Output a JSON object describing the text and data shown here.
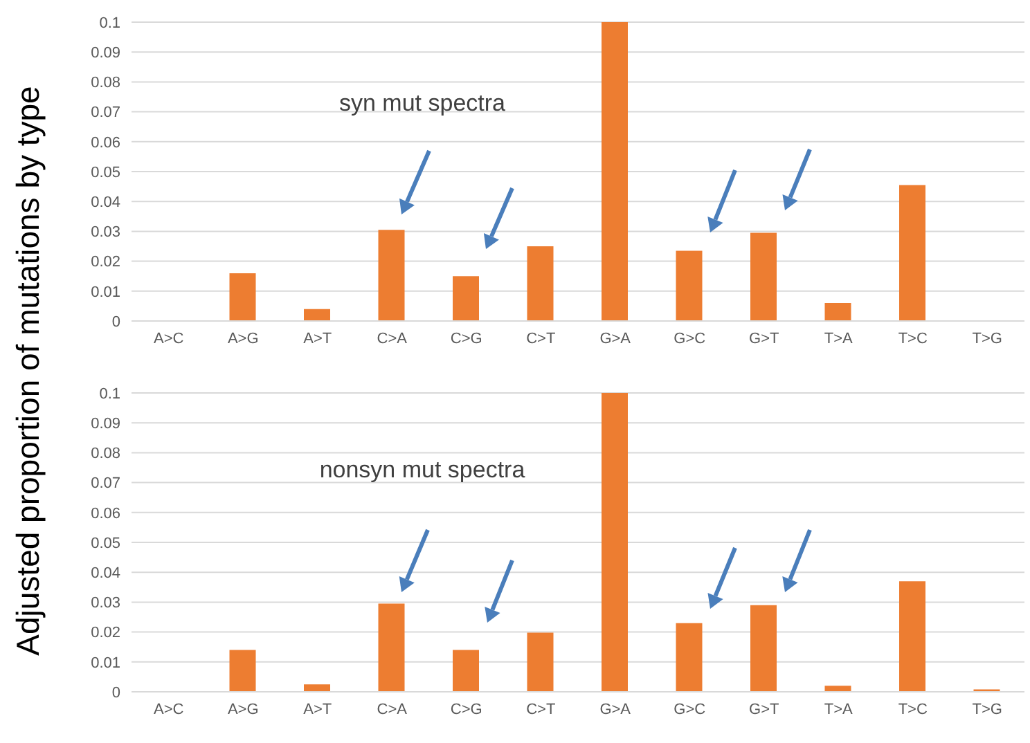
{
  "chart_data": [
    {
      "type": "bar",
      "ylabel": "Adjusted proportion of mutations by type",
      "annotations": [
        "syn mut  spectra"
      ],
      "categories": [
        "A>C",
        "A>G",
        "A>T",
        "C>A",
        "C>G",
        "C>T",
        "G>A",
        "G>C",
        "G>T",
        "T>A",
        "T>C",
        "T>G"
      ],
      "values": [
        0,
        0.016,
        0.004,
        0.0305,
        0.015,
        0.025,
        0.1,
        0.0235,
        0.0295,
        0.006,
        0.0455,
        0
      ],
      "color": "#ed7d31",
      "ylim": [
        0,
        0.1
      ],
      "yticks": [
        0,
        0.01,
        0.02,
        0.03,
        0.04,
        0.05,
        0.06,
        0.07,
        0.08,
        0.09,
        0.1
      ],
      "grid": "y",
      "legend": false
    },
    {
      "type": "bar",
      "annotations": [
        "nonsyn mut  spectra"
      ],
      "categories": [
        "A>C",
        "A>G",
        "A>T",
        "C>A",
        "C>G",
        "C>T",
        "G>A",
        "G>C",
        "G>T",
        "T>A",
        "T>C",
        "T>G"
      ],
      "values": [
        0,
        0.014,
        0.0025,
        0.0295,
        0.014,
        0.0198,
        0.1,
        0.023,
        0.029,
        0.002,
        0.037,
        0.0008
      ],
      "color": "#ed7d31",
      "ylim": [
        0,
        0.1
      ],
      "yticks": [
        0,
        0.01,
        0.02,
        0.03,
        0.04,
        0.05,
        0.06,
        0.07,
        0.08,
        0.09,
        0.1
      ],
      "grid": "y",
      "legend": false
    }
  ]
}
